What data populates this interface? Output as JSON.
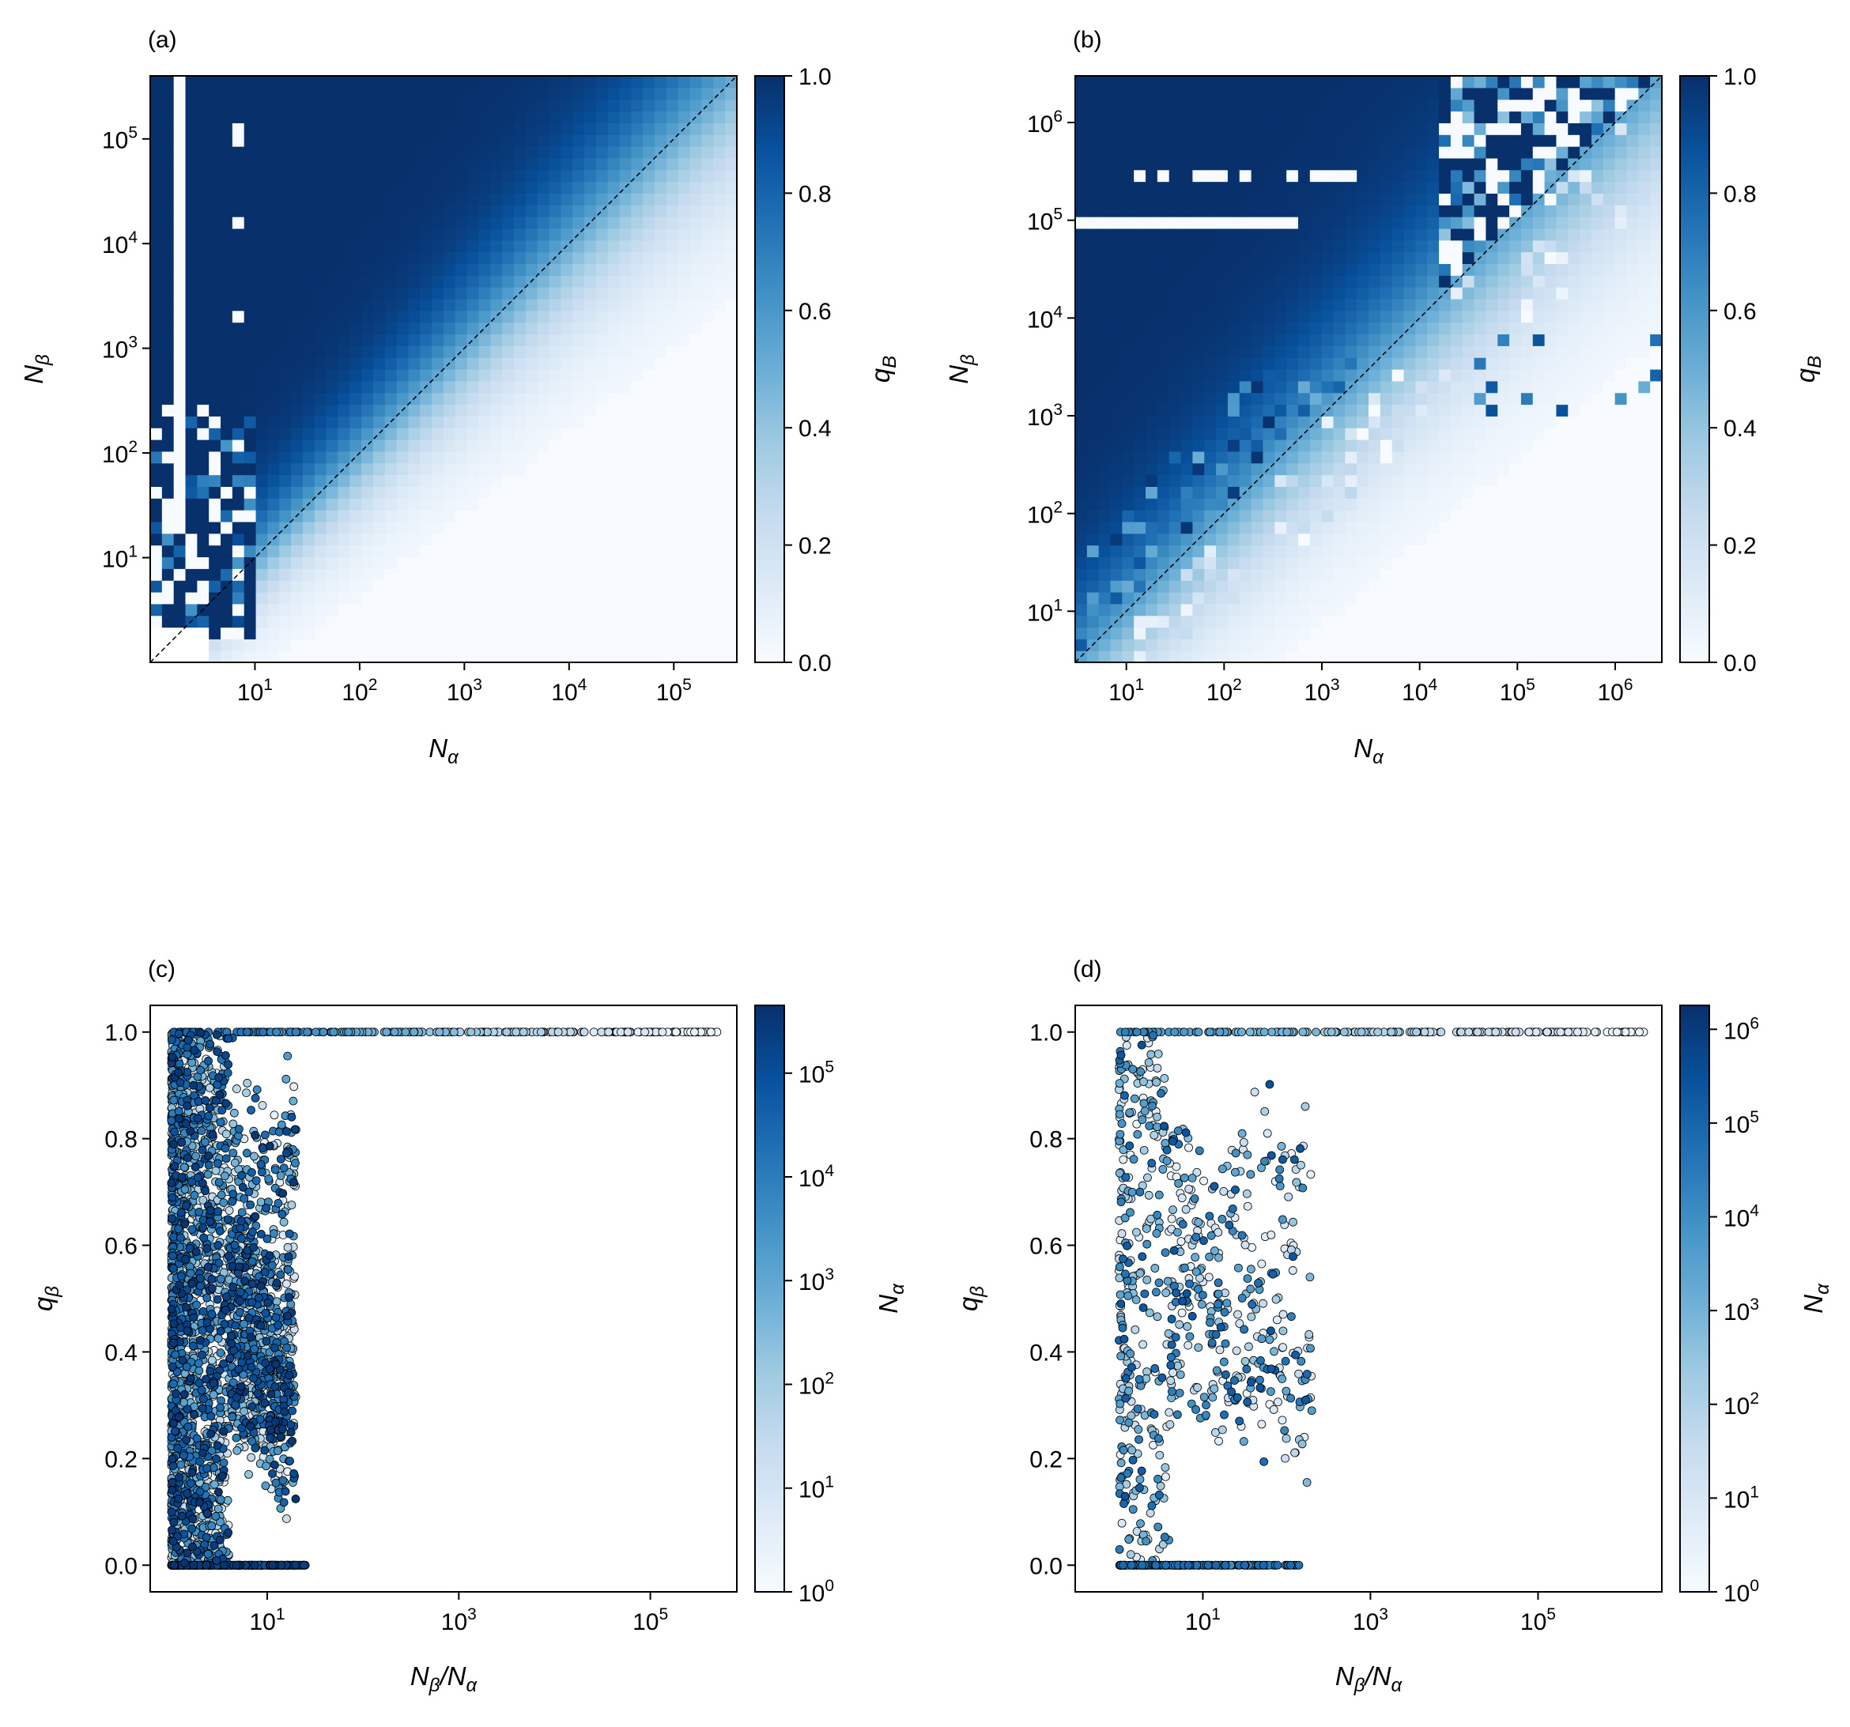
{
  "colors": {
    "cmap": [
      "#f7fbff",
      "#deebf7",
      "#c6dbef",
      "#9ecae1",
      "#6baed6",
      "#4292c6",
      "#2171b5",
      "#08519c",
      "#08306b"
    ],
    "axes": "#000000",
    "diagonal": "#000000",
    "marker_edge": "#000000"
  },
  "chart_data": [
    {
      "panel_label": "(a)",
      "type": "heatmap",
      "xlabel": "N_α",
      "ylabel": "N_β",
      "x_scale": "log",
      "y_scale": "log",
      "xlim": [
        1,
        400000
      ],
      "ylim": [
        1,
        400000
      ],
      "x_ticks": [
        "10^1",
        "10^2",
        "10^3",
        "10^4",
        "10^5"
      ],
      "y_ticks": [
        "10^1",
        "10^2",
        "10^3",
        "10^4",
        "10^5"
      ],
      "colorbar": {
        "label": "q_B",
        "range": [
          0,
          1
        ],
        "ticks": [
          "0.0",
          "0.2",
          "0.4",
          "0.6",
          "0.8",
          "1.0"
        ]
      },
      "diagonal_line": "y = x (dashed)",
      "cell_value_model": {
        "above_diagonal_value": 1.0,
        "below_diagonal_value": 0.0,
        "transition_width_decades": 0.25,
        "transition_grows_with_N": true,
        "empty_cells": "N_β < 2 and N_α < 3"
      }
    },
    {
      "panel_label": "(b)",
      "type": "heatmap",
      "xlabel": "N_α",
      "ylabel": "N_β",
      "x_scale": "log",
      "y_scale": "log",
      "xlim": [
        3,
        3000000
      ],
      "ylim": [
        3,
        3000000
      ],
      "x_ticks": [
        "10^1",
        "10^2",
        "10^3",
        "10^4",
        "10^5",
        "10^6"
      ],
      "y_ticks": [
        "10^1",
        "10^2",
        "10^3",
        "10^4",
        "10^5",
        "10^6"
      ],
      "colorbar": {
        "label": "q_B",
        "range": [
          0,
          1
        ],
        "ticks": [
          "0.0",
          "0.2",
          "0.4",
          "0.6",
          "0.8",
          "1.0"
        ]
      },
      "diagonal_line": "y = x (dashed)",
      "cell_value_model": {
        "above_diagonal_value": 1.0,
        "below_diagonal_value": 0.0,
        "transition_width_decades": 0.45,
        "sparse_upper_region": true,
        "empty_rows_near": [
          "10^6",
          "10^5.4",
          "10^5"
        ]
      }
    },
    {
      "panel_label": "(c)",
      "type": "scatter",
      "xlabel": "N_β/N_α",
      "ylabel": "q_β",
      "x_scale": "log",
      "xlim": [
        0.6,
        800000
      ],
      "ylim": [
        -0.05,
        1.05
      ],
      "x_ticks": [
        "10^1",
        "10^3",
        "10^5"
      ],
      "y_ticks": [
        "0.0",
        "0.2",
        "0.4",
        "0.6",
        "0.8",
        "1.0"
      ],
      "colorbar": {
        "label": "N_α",
        "scale": "log",
        "range": [
          1,
          450000
        ],
        "ticks": [
          "10^0",
          "10^1",
          "10^2",
          "10^3",
          "10^4",
          "10^5"
        ]
      },
      "point_clusters": [
        {
          "x_range": [
            1,
            20
          ],
          "q_range": [
            0.0,
            1.0
          ],
          "count": 2600,
          "color_log10_range": [
            0.3,
            5.6
          ]
        },
        {
          "x_range": [
            1,
            25
          ],
          "q_value": 0.0,
          "count": 500,
          "color_log10_range": [
            0.5,
            5.6
          ]
        },
        {
          "x_range": [
            1,
            500000
          ],
          "q_value": 1.0,
          "count": 260,
          "color_log10_range": [
            0.0,
            4.5
          ],
          "color_decreases_with_x": true
        }
      ]
    },
    {
      "panel_label": "(d)",
      "type": "scatter",
      "xlabel": "N_β/N_α",
      "ylabel": "q_β",
      "x_scale": "log",
      "xlim": [
        0.3,
        3000000
      ],
      "ylim": [
        -0.05,
        1.05
      ],
      "x_ticks": [
        "10^1",
        "10^3",
        "10^5"
      ],
      "y_ticks": [
        "0.0",
        "0.2",
        "0.4",
        "0.6",
        "0.8",
        "1.0"
      ],
      "colorbar": {
        "label": "N_α",
        "scale": "log",
        "range": [
          1,
          1800000
        ],
        "ticks": [
          "10^0",
          "10^1",
          "10^2",
          "10^3",
          "10^4",
          "10^5",
          "10^6"
        ]
      },
      "point_clusters": [
        {
          "x_range": [
            1,
            200
          ],
          "q_range": [
            0.0,
            1.0
          ],
          "count": 650,
          "color_log10_range": [
            0.3,
            5.5
          ]
        },
        {
          "x_range": [
            1,
            140
          ],
          "q_value": 0.0,
          "count": 220,
          "color_log10_range": [
            2.5,
            5.0
          ]
        },
        {
          "x_range": [
            1,
            2000000
          ],
          "q_value": 1.0,
          "count": 210,
          "color_log10_range": [
            0.0,
            4.0
          ],
          "color_decreases_with_x": true
        }
      ]
    }
  ]
}
